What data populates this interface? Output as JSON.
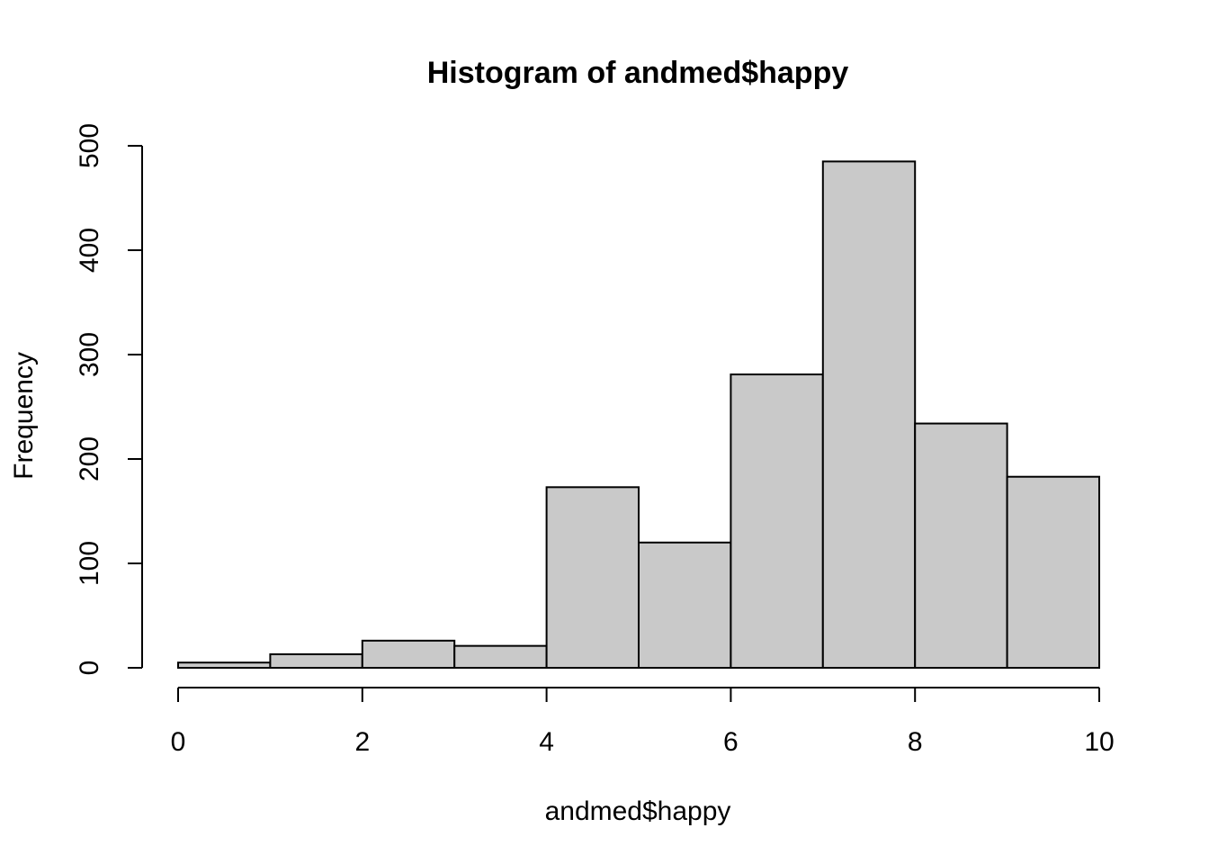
{
  "chart_data": {
    "type": "bar",
    "title": "Histogram of andmed$happy",
    "xlabel": "andmed$happy",
    "ylabel": "Frequency",
    "bins": [
      [
        0,
        1
      ],
      [
        1,
        2
      ],
      [
        2,
        3
      ],
      [
        3,
        4
      ],
      [
        4,
        5
      ],
      [
        5,
        6
      ],
      [
        6,
        7
      ],
      [
        7,
        8
      ],
      [
        8,
        9
      ],
      [
        9,
        10
      ]
    ],
    "values": [
      5,
      13,
      26,
      21,
      173,
      120,
      281,
      485,
      234,
      183
    ],
    "xlim": [
      0,
      10
    ],
    "ylim": [
      0,
      500
    ],
    "xticks": [
      0,
      2,
      4,
      6,
      8,
      10
    ],
    "yticks": [
      0,
      100,
      200,
      300,
      400,
      500
    ],
    "bar_color": "#c9c9c9",
    "edge_color": "#000000",
    "grid": false,
    "legend": "none"
  }
}
